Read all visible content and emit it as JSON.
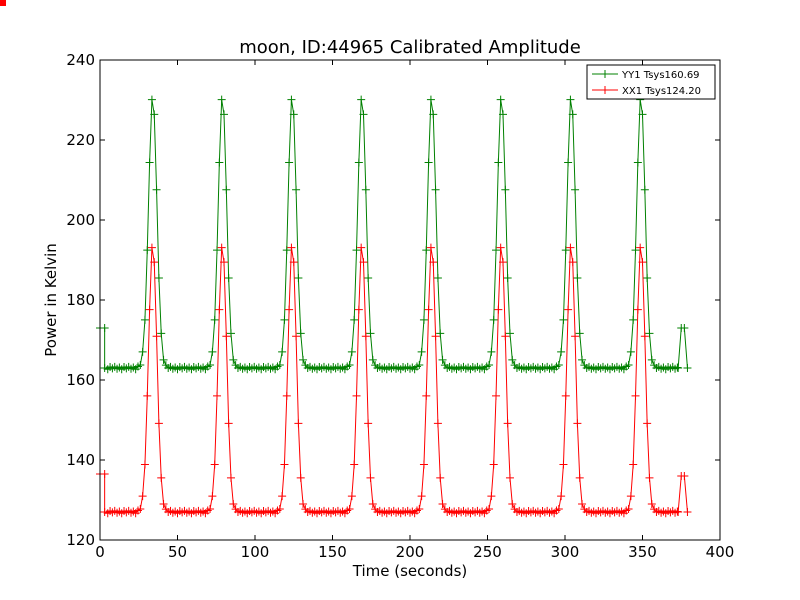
{
  "chart_data": {
    "type": "line",
    "title": "moon, ID:44965 Calibrated Amplitude",
    "xlabel": "Time (seconds)",
    "ylabel": "Power in Kelvin",
    "xlim": [
      0,
      400
    ],
    "ylim": [
      120,
      240
    ],
    "xticks": [
      0,
      50,
      100,
      150,
      200,
      250,
      300,
      350,
      400
    ],
    "yticks": [
      120,
      140,
      160,
      180,
      200,
      220,
      240
    ],
    "grid": false,
    "legend_position": "top-right",
    "series": [
      {
        "name": "YY1 Tsys160.69",
        "color": "#008000",
        "baseline": 163,
        "peak": 231,
        "peak_times": [
          34,
          79,
          124,
          169,
          214,
          259,
          304,
          349
        ],
        "peak_width": 2.7,
        "x_range": [
          5,
          373
        ],
        "marker_spacing": 1.5,
        "start_points": [
          {
            "x": 0,
            "y": 173
          },
          {
            "x": 3,
            "y": 173
          }
        ],
        "end_points": [
          {
            "x": 373,
            "y": 163
          },
          {
            "x": 375,
            "y": 173
          },
          {
            "x": 377,
            "y": 173
          },
          {
            "x": 379,
            "y": 163
          }
        ]
      },
      {
        "name": "XX1 Tsys124.20",
        "color": "#ff0000",
        "baseline": 127,
        "peak": 194,
        "peak_times": [
          34,
          79,
          124,
          169,
          214,
          259,
          304,
          349
        ],
        "peak_width": 2.7,
        "x_range": [
          5,
          373
        ],
        "marker_spacing": 1.5,
        "start_points": [
          {
            "x": 0,
            "y": 136.5
          },
          {
            "x": 3,
            "y": 136.5
          }
        ],
        "end_points": [
          {
            "x": 373,
            "y": 127
          },
          {
            "x": 375,
            "y": 136
          },
          {
            "x": 377,
            "y": 136
          },
          {
            "x": 379,
            "y": 127
          }
        ]
      }
    ]
  }
}
